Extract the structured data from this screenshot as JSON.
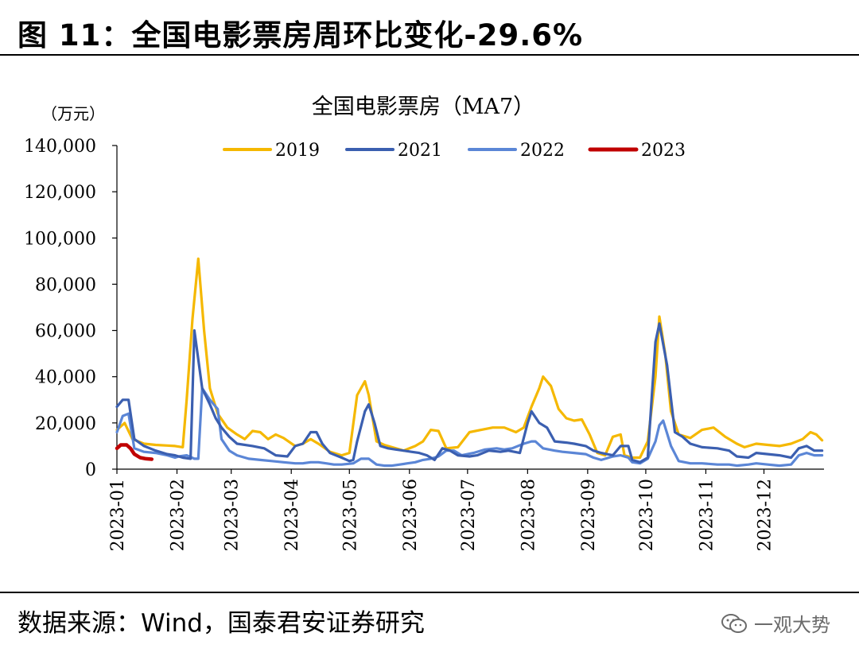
{
  "figure_title": "图 11：全国电影票房周环比变化-29.6%",
  "source_note": "数据来源：Wind，国泰君安证券研究",
  "watermark": "一观大势",
  "chart_data": {
    "type": "line",
    "title": "全国电影票房（MA7）",
    "unit": "（万元）",
    "ylim": [
      0,
      140000
    ],
    "yticks": [
      0,
      20000,
      40000,
      60000,
      80000,
      100000,
      120000,
      140000
    ],
    "ytick_labels": [
      "0",
      "20,000",
      "40,000",
      "60,000",
      "80,000",
      "100,000",
      "120,000",
      "140,000"
    ],
    "xlim": [
      0,
      365
    ],
    "xticks": [
      0,
      31,
      59,
      90,
      120,
      151,
      181,
      212,
      243,
      273,
      304,
      334
    ],
    "xtick_labels": [
      "2023-01",
      "2023-02",
      "2023-03",
      "2023-04",
      "2023-05",
      "2023-06",
      "2023-07",
      "2023-08",
      "2023-09",
      "2023-10",
      "2023-11",
      "2023-12"
    ],
    "legend_position": "top",
    "series": [
      {
        "name": "2019",
        "color": "#f5b800",
        "points": [
          [
            0,
            17000
          ],
          [
            4,
            20000
          ],
          [
            8,
            13000
          ],
          [
            14,
            11000
          ],
          [
            20,
            10500
          ],
          [
            26,
            10200
          ],
          [
            30,
            10000
          ],
          [
            34,
            9500
          ],
          [
            36,
            30000
          ],
          [
            39,
            65000
          ],
          [
            42,
            91000
          ],
          [
            45,
            60000
          ],
          [
            48,
            35000
          ],
          [
            52,
            24000
          ],
          [
            57,
            18000
          ],
          [
            62,
            15000
          ],
          [
            66,
            13000
          ],
          [
            70,
            16500
          ],
          [
            74,
            16000
          ],
          [
            78,
            13000
          ],
          [
            82,
            15000
          ],
          [
            86,
            13500
          ],
          [
            92,
            10000
          ],
          [
            96,
            11000
          ],
          [
            100,
            13000
          ],
          [
            104,
            11000
          ],
          [
            110,
            7500
          ],
          [
            116,
            6000
          ],
          [
            120,
            7000
          ],
          [
            124,
            32000
          ],
          [
            128,
            38000
          ],
          [
            130,
            32000
          ],
          [
            134,
            12000
          ],
          [
            138,
            10500
          ],
          [
            144,
            9000
          ],
          [
            148,
            8000
          ],
          [
            154,
            10000
          ],
          [
            158,
            12000
          ],
          [
            162,
            17000
          ],
          [
            166,
            16500
          ],
          [
            170,
            9000
          ],
          [
            176,
            9500
          ],
          [
            182,
            16000
          ],
          [
            188,
            17000
          ],
          [
            194,
            18000
          ],
          [
            200,
            18000
          ],
          [
            206,
            16000
          ],
          [
            210,
            18000
          ],
          [
            214,
            27000
          ],
          [
            218,
            35000
          ],
          [
            220,
            40000
          ],
          [
            224,
            36000
          ],
          [
            228,
            26000
          ],
          [
            232,
            22000
          ],
          [
            236,
            21000
          ],
          [
            240,
            21500
          ],
          [
            244,
            15000
          ],
          [
            248,
            7000
          ],
          [
            252,
            6000
          ],
          [
            256,
            14000
          ],
          [
            260,
            15000
          ],
          [
            262,
            6000
          ],
          [
            266,
            5000
          ],
          [
            270,
            5000
          ],
          [
            274,
            12000
          ],
          [
            278,
            40000
          ],
          [
            280,
            66000
          ],
          [
            283,
            50000
          ],
          [
            286,
            25000
          ],
          [
            290,
            15000
          ],
          [
            296,
            13500
          ],
          [
            302,
            17000
          ],
          [
            308,
            18000
          ],
          [
            314,
            14000
          ],
          [
            320,
            11000
          ],
          [
            324,
            9500
          ],
          [
            330,
            11000
          ],
          [
            336,
            10500
          ],
          [
            342,
            10000
          ],
          [
            348,
            11000
          ],
          [
            354,
            13000
          ],
          [
            358,
            16000
          ],
          [
            361,
            15000
          ],
          [
            364,
            12500
          ]
        ]
      },
      {
        "name": "2021",
        "color": "#3b5fb0",
        "points": [
          [
            0,
            27000
          ],
          [
            3,
            30000
          ],
          [
            6,
            30000
          ],
          [
            9,
            13000
          ],
          [
            14,
            10000
          ],
          [
            20,
            8000
          ],
          [
            26,
            6500
          ],
          [
            30,
            6000
          ],
          [
            34,
            5000
          ],
          [
            38,
            4500
          ],
          [
            40,
            60000
          ],
          [
            44,
            35000
          ],
          [
            48,
            28000
          ],
          [
            51,
            22000
          ],
          [
            54,
            18000
          ],
          [
            58,
            14000
          ],
          [
            62,
            11000
          ],
          [
            70,
            10000
          ],
          [
            76,
            9000
          ],
          [
            82,
            6000
          ],
          [
            88,
            5500
          ],
          [
            92,
            10000
          ],
          [
            96,
            11000
          ],
          [
            100,
            16000
          ],
          [
            103,
            16000
          ],
          [
            106,
            11000
          ],
          [
            110,
            7000
          ],
          [
            116,
            5000
          ],
          [
            120,
            3500
          ],
          [
            122,
            4000
          ],
          [
            124,
            12000
          ],
          [
            128,
            25000
          ],
          [
            130,
            28000
          ],
          [
            133,
            20000
          ],
          [
            136,
            10000
          ],
          [
            140,
            9000
          ],
          [
            144,
            8500
          ],
          [
            148,
            8000
          ],
          [
            152,
            7500
          ],
          [
            156,
            7000
          ],
          [
            160,
            6000
          ],
          [
            164,
            4000
          ],
          [
            168,
            9000
          ],
          [
            172,
            8000
          ],
          [
            176,
            6000
          ],
          [
            182,
            5500
          ],
          [
            186,
            6000
          ],
          [
            192,
            8000
          ],
          [
            198,
            7500
          ],
          [
            202,
            8000
          ],
          [
            208,
            7000
          ],
          [
            212,
            20000
          ],
          [
            214,
            25000
          ],
          [
            218,
            20000
          ],
          [
            222,
            18000
          ],
          [
            226,
            12000
          ],
          [
            232,
            11500
          ],
          [
            236,
            11000
          ],
          [
            242,
            10000
          ],
          [
            246,
            8000
          ],
          [
            250,
            7000
          ],
          [
            256,
            6000
          ],
          [
            260,
            10000
          ],
          [
            264,
            10000
          ],
          [
            266,
            4000
          ],
          [
            270,
            3000
          ],
          [
            274,
            5000
          ],
          [
            276,
            30000
          ],
          [
            278,
            55000
          ],
          [
            280,
            63000
          ],
          [
            284,
            45000
          ],
          [
            288,
            16000
          ],
          [
            292,
            14000
          ],
          [
            296,
            11000
          ],
          [
            302,
            9500
          ],
          [
            310,
            9000
          ],
          [
            316,
            8000
          ],
          [
            320,
            5500
          ],
          [
            326,
            5000
          ],
          [
            330,
            7000
          ],
          [
            336,
            6500
          ],
          [
            342,
            6000
          ],
          [
            348,
            5000
          ],
          [
            352,
            9000
          ],
          [
            356,
            10000
          ],
          [
            360,
            8000
          ],
          [
            364,
            8000
          ]
        ]
      },
      {
        "name": "2022",
        "color": "#5b86d6",
        "points": [
          [
            0,
            16000
          ],
          [
            3,
            23000
          ],
          [
            6,
            24000
          ],
          [
            9,
            9000
          ],
          [
            14,
            7500
          ],
          [
            20,
            7000
          ],
          [
            26,
            6000
          ],
          [
            30,
            5000
          ],
          [
            32,
            5500
          ],
          [
            36,
            6000
          ],
          [
            40,
            4500
          ],
          [
            42,
            4500
          ],
          [
            44,
            35000
          ],
          [
            48,
            30000
          ],
          [
            52,
            26000
          ],
          [
            54,
            13000
          ],
          [
            58,
            8000
          ],
          [
            62,
            6000
          ],
          [
            68,
            4500
          ],
          [
            74,
            4000
          ],
          [
            80,
            3500
          ],
          [
            86,
            3000
          ],
          [
            92,
            2500
          ],
          [
            96,
            2500
          ],
          [
            100,
            3000
          ],
          [
            104,
            3000
          ],
          [
            108,
            2500
          ],
          [
            112,
            2000
          ],
          [
            116,
            2000
          ],
          [
            122,
            2500
          ],
          [
            126,
            4500
          ],
          [
            130,
            4500
          ],
          [
            134,
            2000
          ],
          [
            138,
            1500
          ],
          [
            142,
            1500
          ],
          [
            146,
            2000
          ],
          [
            150,
            2500
          ],
          [
            154,
            3000
          ],
          [
            158,
            4000
          ],
          [
            162,
            4500
          ],
          [
            166,
            5500
          ],
          [
            170,
            8000
          ],
          [
            174,
            8000
          ],
          [
            178,
            6000
          ],
          [
            184,
            7000
          ],
          [
            190,
            8500
          ],
          [
            196,
            9000
          ],
          [
            200,
            8500
          ],
          [
            204,
            9000
          ],
          [
            210,
            11000
          ],
          [
            214,
            12000
          ],
          [
            216,
            12000
          ],
          [
            220,
            9000
          ],
          [
            226,
            8000
          ],
          [
            230,
            7500
          ],
          [
            236,
            7000
          ],
          [
            242,
            6500
          ],
          [
            246,
            5000
          ],
          [
            250,
            4000
          ],
          [
            256,
            5500
          ],
          [
            260,
            6000
          ],
          [
            264,
            5000
          ],
          [
            266,
            3000
          ],
          [
            270,
            2500
          ],
          [
            274,
            4500
          ],
          [
            278,
            12000
          ],
          [
            280,
            19000
          ],
          [
            282,
            21000
          ],
          [
            286,
            10000
          ],
          [
            290,
            3500
          ],
          [
            296,
            2500
          ],
          [
            302,
            2500
          ],
          [
            310,
            2000
          ],
          [
            316,
            2000
          ],
          [
            320,
            1500
          ],
          [
            326,
            2000
          ],
          [
            330,
            2500
          ],
          [
            336,
            2000
          ],
          [
            342,
            1500
          ],
          [
            348,
            2000
          ],
          [
            352,
            6000
          ],
          [
            356,
            7000
          ],
          [
            360,
            6000
          ],
          [
            364,
            6000
          ]
        ]
      },
      {
        "name": "2023",
        "color": "#c00000",
        "points": [
          [
            0,
            9000
          ],
          [
            2,
            10500
          ],
          [
            5,
            10500
          ],
          [
            7,
            9000
          ],
          [
            9,
            6500
          ],
          [
            12,
            5000
          ],
          [
            15,
            4500
          ],
          [
            18,
            4300
          ]
        ]
      }
    ]
  }
}
